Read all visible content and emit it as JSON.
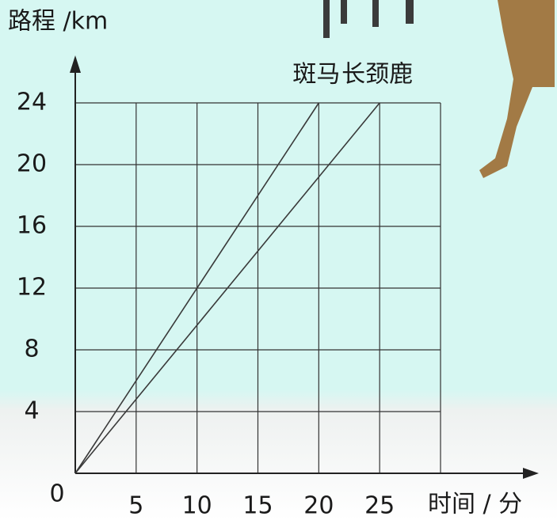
{
  "chart_data": {
    "type": "line",
    "y_label": "路程 /km",
    "x_label": "时间 / 分",
    "series": [
      {
        "name": "斑马",
        "color": "#3a3a3a",
        "x": [
          0,
          20
        ],
        "values": [
          0,
          24
        ]
      },
      {
        "name": "长颈鹿",
        "color": "#3a3a3a",
        "x": [
          0,
          25
        ],
        "values": [
          0,
          24
        ]
      }
    ],
    "xlim": [
      0,
      30
    ],
    "xticks": [
      5,
      10,
      15,
      20,
      25
    ],
    "ylim": [
      0,
      24
    ],
    "yticks": [
      0,
      4,
      8,
      12,
      16,
      20,
      24
    ],
    "grid": true
  }
}
